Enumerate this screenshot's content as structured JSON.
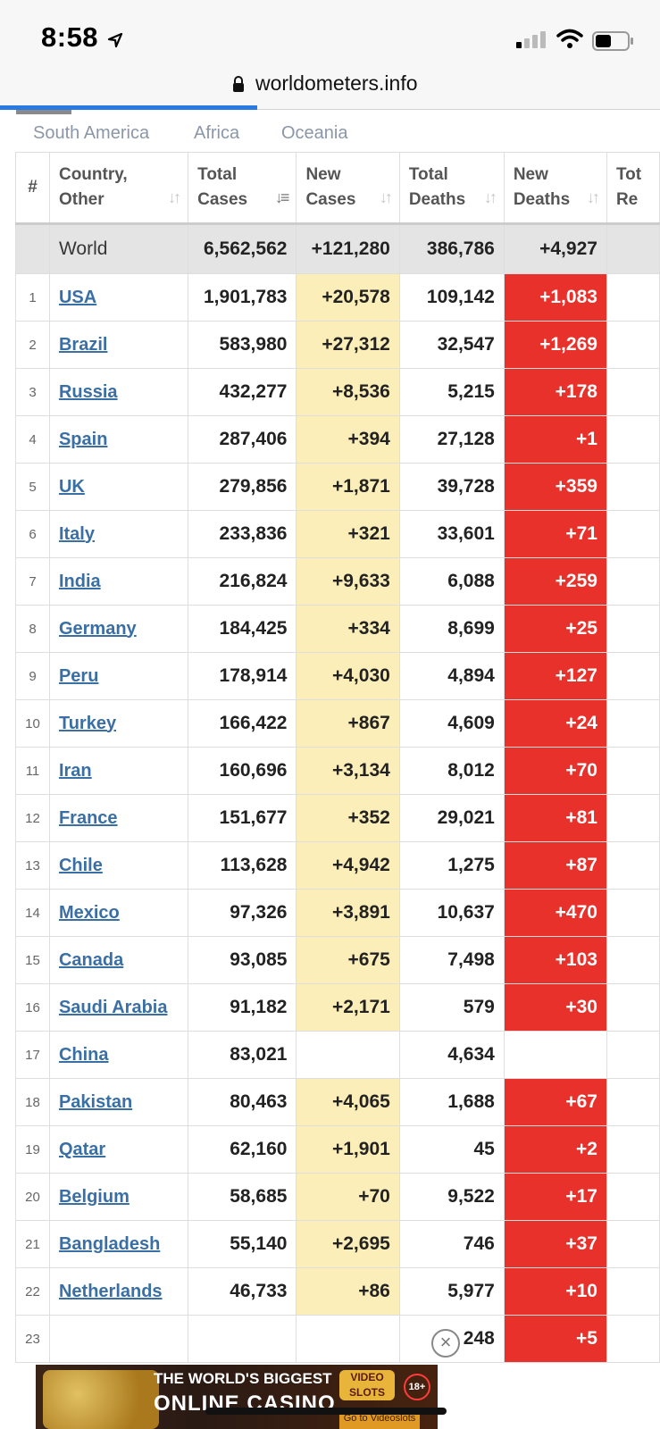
{
  "status_bar": {
    "time": "8:58"
  },
  "browser": {
    "url": "worldometers.info",
    "load_progress": 0.39
  },
  "region_tabs": [
    "South America",
    "Africa",
    "Oceania"
  ],
  "table": {
    "headers": [
      "#",
      "Country,\nOther",
      "Total\nCases",
      "New\nCases",
      "Total\nDeaths",
      "New\nDeaths",
      "Tot\nRe"
    ],
    "world": {
      "label": "World",
      "total_cases": "6,562,562",
      "new_cases": "+121,280",
      "total_deaths": "386,786",
      "new_deaths": "+4,927"
    },
    "rows": [
      {
        "rank": "1",
        "country": "USA",
        "total_cases": "1,901,783",
        "new_cases": "+20,578",
        "total_deaths": "109,142",
        "new_deaths": "+1,083"
      },
      {
        "rank": "2",
        "country": "Brazil",
        "total_cases": "583,980",
        "new_cases": "+27,312",
        "total_deaths": "32,547",
        "new_deaths": "+1,269"
      },
      {
        "rank": "3",
        "country": "Russia",
        "total_cases": "432,277",
        "new_cases": "+8,536",
        "total_deaths": "5,215",
        "new_deaths": "+178"
      },
      {
        "rank": "4",
        "country": "Spain",
        "total_cases": "287,406",
        "new_cases": "+394",
        "total_deaths": "27,128",
        "new_deaths": "+1"
      },
      {
        "rank": "5",
        "country": "UK",
        "total_cases": "279,856",
        "new_cases": "+1,871",
        "total_deaths": "39,728",
        "new_deaths": "+359"
      },
      {
        "rank": "6",
        "country": "Italy",
        "total_cases": "233,836",
        "new_cases": "+321",
        "total_deaths": "33,601",
        "new_deaths": "+71"
      },
      {
        "rank": "7",
        "country": "India",
        "total_cases": "216,824",
        "new_cases": "+9,633",
        "total_deaths": "6,088",
        "new_deaths": "+259"
      },
      {
        "rank": "8",
        "country": "Germany",
        "total_cases": "184,425",
        "new_cases": "+334",
        "total_deaths": "8,699",
        "new_deaths": "+25"
      },
      {
        "rank": "9",
        "country": "Peru",
        "total_cases": "178,914",
        "new_cases": "+4,030",
        "total_deaths": "4,894",
        "new_deaths": "+127"
      },
      {
        "rank": "10",
        "country": "Turkey",
        "total_cases": "166,422",
        "new_cases": "+867",
        "total_deaths": "4,609",
        "new_deaths": "+24"
      },
      {
        "rank": "11",
        "country": "Iran",
        "total_cases": "160,696",
        "new_cases": "+3,134",
        "total_deaths": "8,012",
        "new_deaths": "+70"
      },
      {
        "rank": "12",
        "country": "France",
        "total_cases": "151,677",
        "new_cases": "+352",
        "total_deaths": "29,021",
        "new_deaths": "+81"
      },
      {
        "rank": "13",
        "country": "Chile",
        "total_cases": "113,628",
        "new_cases": "+4,942",
        "total_deaths": "1,275",
        "new_deaths": "+87"
      },
      {
        "rank": "14",
        "country": "Mexico",
        "total_cases": "97,326",
        "new_cases": "+3,891",
        "total_deaths": "10,637",
        "new_deaths": "+470"
      },
      {
        "rank": "15",
        "country": "Canada",
        "total_cases": "93,085",
        "new_cases": "+675",
        "total_deaths": "7,498",
        "new_deaths": "+103"
      },
      {
        "rank": "16",
        "country": "Saudi Arabia",
        "total_cases": "91,182",
        "new_cases": "+2,171",
        "total_deaths": "579",
        "new_deaths": "+30"
      },
      {
        "rank": "17",
        "country": "China",
        "total_cases": "83,021",
        "new_cases": "",
        "total_deaths": "4,634",
        "new_deaths": ""
      },
      {
        "rank": "18",
        "country": "Pakistan",
        "total_cases": "80,463",
        "new_cases": "+4,065",
        "total_deaths": "1,688",
        "new_deaths": "+67"
      },
      {
        "rank": "19",
        "country": "Qatar",
        "total_cases": "62,160",
        "new_cases": "+1,901",
        "total_deaths": "45",
        "new_deaths": "+2"
      },
      {
        "rank": "20",
        "country": "Belgium",
        "total_cases": "58,685",
        "new_cases": "+70",
        "total_deaths": "9,522",
        "new_deaths": "+17"
      },
      {
        "rank": "21",
        "country": "Bangladesh",
        "total_cases": "55,140",
        "new_cases": "+2,695",
        "total_deaths": "746",
        "new_deaths": "+37"
      },
      {
        "rank": "22",
        "country": "Netherlands",
        "total_cases": "46,733",
        "new_cases": "+86",
        "total_deaths": "5,977",
        "new_deaths": "+10"
      },
      {
        "rank": "23",
        "country": "",
        "total_cases": "",
        "new_cases": "",
        "total_deaths": "248",
        "new_deaths": "+5"
      }
    ]
  },
  "ad": {
    "line1": "THE WORLD'S BIGGEST",
    "line2": "ONLINE CASINO",
    "logo": "VIDEO SLOTS",
    "age": "18+",
    "cta": "Go to Videoslots"
  },
  "colors": {
    "new_cases_bg": "#fbeeb8",
    "new_deaths_bg": "#e8312b",
    "link": "#3a6fa5",
    "progress": "#2a7ae2"
  }
}
